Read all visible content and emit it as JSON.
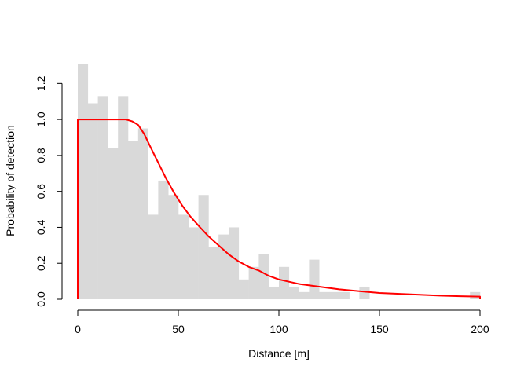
{
  "chart_data": {
    "type": "bar",
    "title": "",
    "xlabel": "Distance [m]",
    "ylabel": "Probability of detection",
    "xlim": [
      0,
      200
    ],
    "ylim": [
      0,
      1.35
    ],
    "x_ticks": [
      0,
      50,
      100,
      150,
      200
    ],
    "y_ticks": [
      0.0,
      0.2,
      0.4,
      0.6,
      0.8,
      1.0,
      1.2
    ],
    "x_tick_labels": [
      "0",
      "50",
      "100",
      "150",
      "200"
    ],
    "y_tick_labels": [
      "0.0",
      "0.2",
      "0.4",
      "0.6",
      "0.8",
      "1.0",
      "1.2"
    ],
    "grid": false,
    "histogram": {
      "bin_width": 5,
      "color": "#d9d9d9",
      "bins": [
        {
          "x0": 0,
          "value": 1.31
        },
        {
          "x0": 5,
          "value": 1.09
        },
        {
          "x0": 10,
          "value": 1.13
        },
        {
          "x0": 15,
          "value": 0.84
        },
        {
          "x0": 20,
          "value": 1.13
        },
        {
          "x0": 25,
          "value": 0.88
        },
        {
          "x0": 30,
          "value": 0.95
        },
        {
          "x0": 35,
          "value": 0.47
        },
        {
          "x0": 40,
          "value": 0.66
        },
        {
          "x0": 45,
          "value": 0.58
        },
        {
          "x0": 50,
          "value": 0.47
        },
        {
          "x0": 55,
          "value": 0.4
        },
        {
          "x0": 60,
          "value": 0.58
        },
        {
          "x0": 65,
          "value": 0.29
        },
        {
          "x0": 70,
          "value": 0.36
        },
        {
          "x0": 75,
          "value": 0.4
        },
        {
          "x0": 80,
          "value": 0.11
        },
        {
          "x0": 85,
          "value": 0.18
        },
        {
          "x0": 90,
          "value": 0.25
        },
        {
          "x0": 95,
          "value": 0.07
        },
        {
          "x0": 100,
          "value": 0.18
        },
        {
          "x0": 105,
          "value": 0.07
        },
        {
          "x0": 110,
          "value": 0.04
        },
        {
          "x0": 115,
          "value": 0.22
        },
        {
          "x0": 120,
          "value": 0.04
        },
        {
          "x0": 125,
          "value": 0.04
        },
        {
          "x0": 130,
          "value": 0.04
        },
        {
          "x0": 140,
          "value": 0.07
        },
        {
          "x0": 195,
          "value": 0.04
        }
      ]
    },
    "curve": {
      "type": "line",
      "color": "#ff0000",
      "points": [
        [
          0,
          0
        ],
        [
          0,
          1.0
        ],
        [
          5,
          1.0
        ],
        [
          10,
          1.0
        ],
        [
          15,
          1.0
        ],
        [
          20,
          1.0
        ],
        [
          24,
          1.0
        ],
        [
          27,
          0.99
        ],
        [
          30,
          0.97
        ],
        [
          33,
          0.92
        ],
        [
          36,
          0.85
        ],
        [
          40,
          0.76
        ],
        [
          44,
          0.67
        ],
        [
          48,
          0.59
        ],
        [
          52,
          0.52
        ],
        [
          56,
          0.46
        ],
        [
          60,
          0.41
        ],
        [
          65,
          0.35
        ],
        [
          70,
          0.3
        ],
        [
          75,
          0.25
        ],
        [
          80,
          0.21
        ],
        [
          85,
          0.18
        ],
        [
          90,
          0.16
        ],
        [
          95,
          0.13
        ],
        [
          100,
          0.11
        ],
        [
          110,
          0.085
        ],
        [
          120,
          0.07
        ],
        [
          130,
          0.055
        ],
        [
          140,
          0.045
        ],
        [
          150,
          0.035
        ],
        [
          160,
          0.03
        ],
        [
          170,
          0.025
        ],
        [
          180,
          0.02
        ],
        [
          190,
          0.017
        ],
        [
          200,
          0.015
        ],
        [
          200,
          0
        ]
      ]
    }
  }
}
